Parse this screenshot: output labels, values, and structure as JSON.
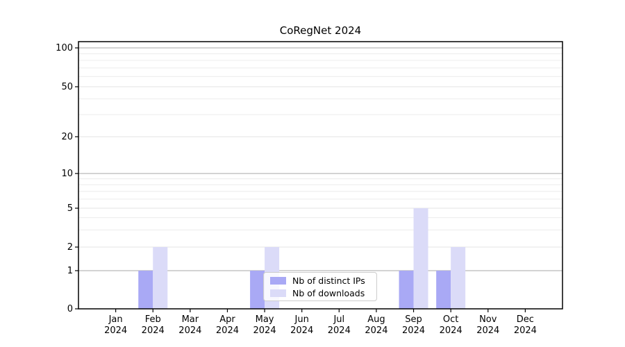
{
  "chart_data": {
    "type": "bar",
    "title": "CoRegNet 2024",
    "categories": [
      "Jan 2024",
      "Feb 2024",
      "Mar 2024",
      "Apr 2024",
      "May 2024",
      "Jun 2024",
      "Jul 2024",
      "Aug 2024",
      "Sep 2024",
      "Oct 2024",
      "Nov 2024",
      "Dec 2024"
    ],
    "series": [
      {
        "name": "Nb of distinct IPs",
        "color": "#a9a9f5",
        "values": [
          0,
          1,
          0,
          0,
          1,
          0,
          0,
          0,
          1,
          1,
          0,
          0
        ]
      },
      {
        "name": "Nb of downloads",
        "color": "#dbdbf8",
        "values": [
          0,
          2,
          0,
          0,
          2,
          0,
          0,
          0,
          5,
          2,
          0,
          0
        ]
      }
    ],
    "xlabel": "",
    "ylabel": "",
    "y_axis": {
      "scale": "log-like (0,1 then logarithmic)",
      "tick_values": [
        0,
        1,
        2,
        5,
        10,
        20,
        50,
        100
      ],
      "major_grid_values": [
        1,
        10,
        100
      ],
      "labeled_minor_values": [
        2,
        5,
        20,
        50
      ],
      "minor_grid_values": [
        3,
        4,
        6,
        7,
        8,
        9,
        30,
        40,
        60,
        70,
        80,
        90
      ],
      "range": [
        0,
        112
      ]
    },
    "grid": true,
    "legend": {
      "position": "inside lower center",
      "entries": [
        "Nb of distinct IPs",
        "Nb of downloads"
      ]
    }
  },
  "colors": {
    "background": "#ffffff",
    "axis_spine": "#000000",
    "major_grid": "#b9b9b9",
    "labeled_minor_grid": "#e3e3e3",
    "minor_grid": "#ececec",
    "bar_distinct_ips": "#a9a9f5",
    "bar_downloads": "#dbdbf8",
    "legend_border": "#cccccc"
  }
}
